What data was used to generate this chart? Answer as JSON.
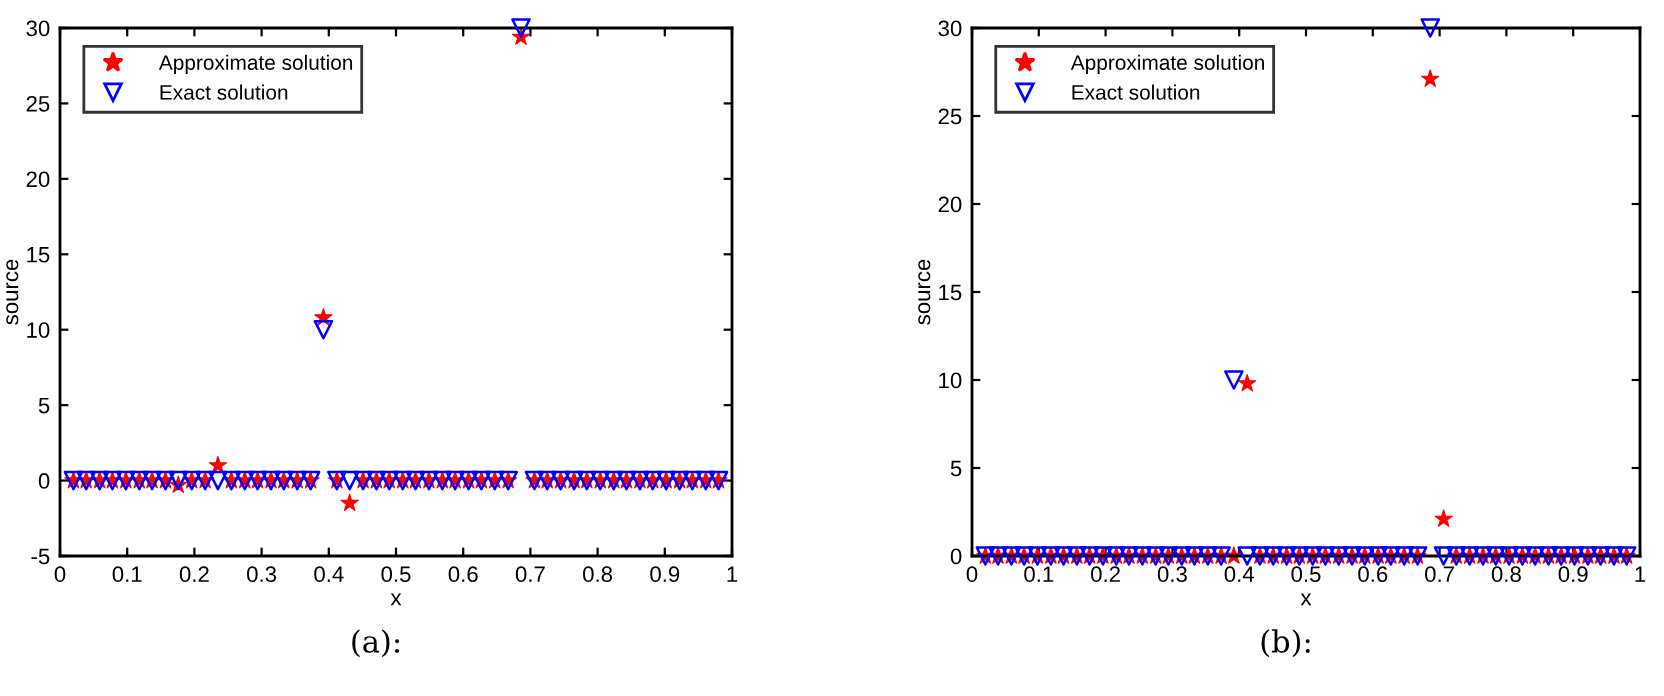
{
  "chart_data": [
    {
      "type": "scatter",
      "xlabel": "x",
      "ylabel": "source",
      "annotations": [
        "(a):"
      ],
      "x": [
        0.02,
        0.039,
        0.059,
        0.078,
        0.098,
        0.118,
        0.137,
        0.157,
        0.176,
        0.196,
        0.216,
        0.235,
        0.255,
        0.275,
        0.294,
        0.314,
        0.333,
        0.353,
        0.373,
        0.392,
        0.412,
        0.431,
        0.451,
        0.471,
        0.49,
        0.51,
        0.529,
        0.549,
        0.569,
        0.588,
        0.608,
        0.627,
        0.647,
        0.667,
        0.686,
        0.706,
        0.725,
        0.745,
        0.765,
        0.784,
        0.804,
        0.824,
        0.843,
        0.863,
        0.882,
        0.902,
        0.922,
        0.941,
        0.961,
        0.98
      ],
      "series": [
        {
          "name": "Approximate solution",
          "color": "#ff0000",
          "marker": "star",
          "values": [
            0,
            0,
            0,
            0,
            0,
            0,
            0,
            0,
            -0.3,
            0,
            0,
            1,
            0,
            0,
            0,
            0,
            0,
            0,
            0,
            10.8,
            0,
            -1.5,
            0,
            0,
            0,
            0,
            0,
            0,
            0,
            0,
            0,
            0,
            0,
            0,
            29.4,
            0,
            0,
            0,
            0,
            0,
            0,
            0,
            0,
            0,
            0,
            0,
            0,
            0,
            0,
            0
          ]
        },
        {
          "name": "Exact solution",
          "color": "#0000ff",
          "marker": "triangle",
          "values": [
            0,
            0,
            0,
            0,
            0,
            0,
            0,
            0,
            0,
            0,
            0,
            0,
            0,
            0,
            0,
            0,
            0,
            0,
            0,
            10,
            0,
            0,
            0,
            0,
            0,
            0,
            0,
            0,
            0,
            0,
            0,
            0,
            0,
            0,
            30,
            0,
            0,
            0,
            0,
            0,
            0,
            0,
            0,
            0,
            0,
            0,
            0,
            0,
            0,
            0
          ]
        }
      ],
      "xlim": [
        0,
        1
      ],
      "xticks": [
        0,
        0.1,
        0.2,
        0.3,
        0.4,
        0.5,
        0.6,
        0.7,
        0.8,
        0.9,
        1
      ],
      "ylim": [
        -5,
        30
      ],
      "yticks": [
        -5,
        0,
        5,
        10,
        15,
        20,
        25,
        30
      ],
      "legend": "top left"
    },
    {
      "type": "scatter",
      "xlabel": "x",
      "ylabel": "source",
      "annotations": [
        "(b):"
      ],
      "x": [
        0.02,
        0.039,
        0.059,
        0.078,
        0.098,
        0.118,
        0.137,
        0.157,
        0.176,
        0.196,
        0.216,
        0.235,
        0.255,
        0.275,
        0.294,
        0.314,
        0.333,
        0.353,
        0.373,
        0.392,
        0.412,
        0.431,
        0.451,
        0.471,
        0.49,
        0.51,
        0.529,
        0.549,
        0.569,
        0.588,
        0.608,
        0.627,
        0.647,
        0.667,
        0.686,
        0.706,
        0.725,
        0.745,
        0.765,
        0.784,
        0.804,
        0.824,
        0.843,
        0.863,
        0.882,
        0.902,
        0.922,
        0.941,
        0.961,
        0.98
      ],
      "series": [
        {
          "name": "Approximate solution",
          "color": "#ff0000",
          "marker": "star",
          "values": [
            0,
            0,
            0,
            0,
            0,
            0,
            0,
            0,
            0,
            0,
            0,
            0,
            0,
            0,
            0,
            0,
            0,
            0,
            0,
            0,
            9.8,
            0,
            0,
            0,
            0,
            0,
            0,
            0,
            0,
            0,
            0,
            0,
            0,
            0,
            27.1,
            2.1,
            0,
            0,
            0,
            0,
            0,
            0,
            0,
            0,
            0,
            0,
            0,
            0,
            0,
            0
          ]
        },
        {
          "name": "Exact solution",
          "color": "#0000ff",
          "marker": "triangle",
          "values": [
            0,
            0,
            0,
            0,
            0,
            0,
            0,
            0,
            0,
            0,
            0,
            0,
            0,
            0,
            0,
            0,
            0,
            0,
            0,
            10,
            0,
            0,
            0,
            0,
            0,
            0,
            0,
            0,
            0,
            0,
            0,
            0,
            0,
            0,
            30,
            0,
            0,
            0,
            0,
            0,
            0,
            0,
            0,
            0,
            0,
            0,
            0,
            0,
            0,
            0
          ]
        }
      ],
      "xlim": [
        0,
        1
      ],
      "xticks": [
        0,
        0.1,
        0.2,
        0.3,
        0.4,
        0.5,
        0.6,
        0.7,
        0.8,
        0.9,
        1
      ],
      "ylim": [
        0,
        30
      ],
      "yticks": [
        0,
        5,
        10,
        15,
        20,
        25,
        30
      ],
      "legend": "top left"
    }
  ]
}
